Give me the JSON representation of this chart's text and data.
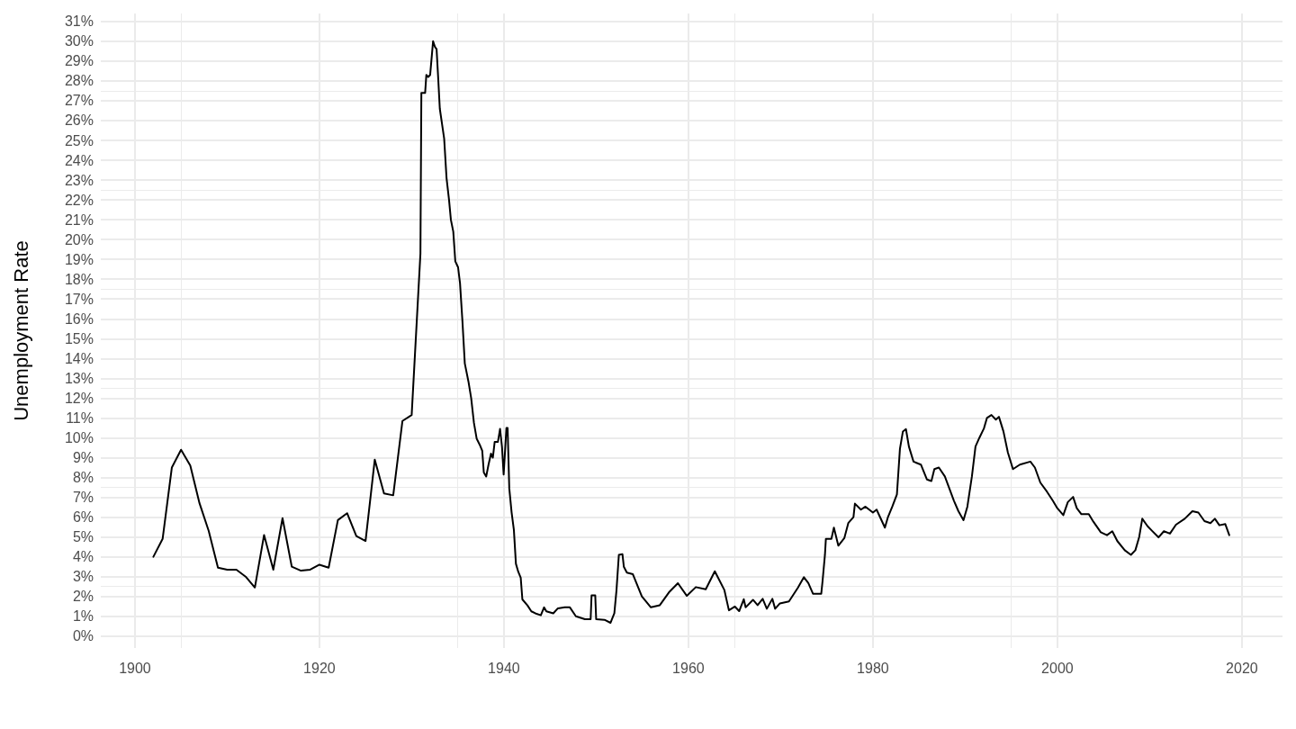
{
  "chart_data": {
    "type": "line",
    "ylabel": "Unemployment Rate",
    "xlim": [
      1896.3,
      2024.4
    ],
    "ylim": [
      -0.6,
      31.4
    ],
    "xticks": [
      1900,
      1920,
      1940,
      1960,
      1980,
      2000,
      2020
    ],
    "yticks": [
      {
        "value": 0,
        "label": "0%"
      },
      {
        "value": 1,
        "label": "1%"
      },
      {
        "value": 2,
        "label": "2%"
      },
      {
        "value": 3,
        "label": "3%"
      },
      {
        "value": 4,
        "label": "4%"
      },
      {
        "value": 5,
        "label": "5%"
      },
      {
        "value": 6,
        "label": "6%"
      },
      {
        "value": 7,
        "label": "7%"
      },
      {
        "value": 8,
        "label": "8%"
      },
      {
        "value": 9,
        "label": "9%"
      },
      {
        "value": 10,
        "label": "10%"
      },
      {
        "value": 11,
        "label": "11%"
      },
      {
        "value": 12,
        "label": "12%"
      },
      {
        "value": 13,
        "label": "13%"
      },
      {
        "value": 14,
        "label": "14%"
      },
      {
        "value": 15,
        "label": "15%"
      },
      {
        "value": 16,
        "label": "16%"
      },
      {
        "value": 17,
        "label": "17%"
      },
      {
        "value": 18,
        "label": "18%"
      },
      {
        "value": 19,
        "label": "19%"
      },
      {
        "value": 20,
        "label": "20%"
      },
      {
        "value": 21,
        "label": "21%"
      },
      {
        "value": 22,
        "label": "22%"
      },
      {
        "value": 23,
        "label": "23%"
      },
      {
        "value": 24,
        "label": "24%"
      },
      {
        "value": 25,
        "label": "25%"
      },
      {
        "value": 26,
        "label": "26%"
      },
      {
        "value": 27,
        "label": "27%"
      },
      {
        "value": 28,
        "label": "28%"
      },
      {
        "value": 29,
        "label": "29%"
      },
      {
        "value": 30,
        "label": "30%"
      },
      {
        "value": 31,
        "label": "31%"
      }
    ],
    "grid": true,
    "marker": "none",
    "line_style": "solid",
    "x": [
      1902,
      1903,
      1904,
      1905,
      1906,
      1907,
      1908,
      1909,
      1910,
      1911,
      1912,
      1913,
      1914,
      1915,
      1916,
      1917,
      1918,
      1919,
      1920,
      1921,
      1922,
      1923,
      1924,
      1925,
      1926,
      1927,
      1928,
      1929,
      1930,
      1930.95,
      1931.05,
      1931.46,
      1931.59,
      1931.8,
      1932.0,
      1932.32,
      1932.54,
      1932.7,
      1932.88,
      1933.05,
      1933.3,
      1933.52,
      1933.78,
      1934.05,
      1934.25,
      1934.51,
      1934.73,
      1935.03,
      1935.24,
      1935.5,
      1935.76,
      1936.15,
      1936.45,
      1936.75,
      1937.05,
      1937.38,
      1937.65,
      1937.82,
      1938.08,
      1938.33,
      1938.6,
      1938.8,
      1939.0,
      1939.35,
      1939.58,
      1939.79,
      1939.97,
      1940.15,
      1940.27,
      1940.4,
      1940.58,
      1940.83,
      1941.08,
      1941.3,
      1941.55,
      1941.82,
      1942.0,
      1942.55,
      1942.97,
      1943.4,
      1944.0,
      1944.35,
      1944.6,
      1945.35,
      1945.85,
      1946.6,
      1947.15,
      1947.8,
      1948.78,
      1949.4,
      1949.5,
      1949.9,
      1950.0,
      1950.9,
      1951.55,
      1951.97,
      1952.2,
      1952.46,
      1952.85,
      1953.0,
      1953.33,
      1953.98,
      1954.95,
      1955.93,
      1956.9,
      1957.88,
      1958.86,
      1959.83,
      1960.8,
      1961.88,
      1962.86,
      1963.9,
      1964.39,
      1965.04,
      1965.5,
      1966.0,
      1966.2,
      1967.0,
      1967.5,
      1968.05,
      1968.5,
      1969.1,
      1969.4,
      1969.92,
      1970.9,
      1971.87,
      1972.52,
      1973.0,
      1973.5,
      1974.4,
      1974.54,
      1974.8,
      1974.9,
      1975.5,
      1975.77,
      1976.25,
      1976.9,
      1977.33,
      1977.89,
      1978.05,
      1978.7,
      1979.19,
      1980.0,
      1980.4,
      1981.3,
      1981.63,
      1982.1,
      1982.6,
      1982.93,
      1983.25,
      1983.58,
      1983.9,
      1984.4,
      1985.2,
      1985.85,
      1986.34,
      1986.66,
      1987.15,
      1987.8,
      1988.29,
      1988.78,
      1989.27,
      1989.82,
      1990.24,
      1990.73,
      1991.12,
      1991.54,
      1992.03,
      1992.36,
      1992.85,
      1993.33,
      1993.66,
      1994.15,
      1994.63,
      1995.18,
      1995.93,
      1997.07,
      1997.56,
      1998.15,
      1998.86,
      1999.5,
      1999.99,
      2000.64,
      2001.13,
      2001.7,
      2002.1,
      2002.6,
      2003.4,
      2003.9,
      2004.7,
      2005.37,
      2005.95,
      2006.5,
      2007.3,
      2007.97,
      2008.45,
      2008.87,
      2009.2,
      2009.76,
      2010.24,
      2010.96,
      2011.54,
      2012.2,
      2012.85,
      2013.8,
      2014.63,
      2015.28,
      2015.94,
      2016.59,
      2017.07,
      2017.56,
      2018.2,
      2018.63
    ],
    "series": [
      {
        "color": "#000000",
        "values": [
          4.0,
          4.9,
          8.5,
          9.4,
          8.6,
          6.7,
          5.3,
          3.45,
          3.35,
          3.35,
          3.0,
          2.45,
          5.1,
          3.35,
          5.95,
          3.5,
          3.3,
          3.35,
          3.6,
          3.45,
          5.85,
          6.2,
          5.05,
          4.8,
          8.9,
          7.2,
          7.1,
          10.85,
          11.15,
          19.3,
          27.4,
          27.4,
          28.3,
          28.2,
          28.3,
          30.0,
          29.7,
          29.6,
          28.1,
          26.6,
          25.8,
          25.1,
          23.1,
          22.0,
          21.0,
          20.4,
          18.9,
          18.6,
          17.8,
          15.9,
          13.75,
          12.85,
          12.0,
          10.75,
          9.95,
          9.65,
          9.35,
          8.25,
          8.05,
          8.65,
          9.2,
          9.0,
          9.8,
          9.8,
          10.45,
          9.55,
          8.15,
          9.55,
          10.5,
          10.5,
          7.45,
          6.25,
          5.35,
          3.65,
          3.25,
          2.95,
          1.85,
          1.55,
          1.25,
          1.15,
          1.05,
          1.45,
          1.25,
          1.15,
          1.4,
          1.45,
          1.45,
          1.0,
          0.85,
          0.85,
          2.05,
          2.05,
          0.85,
          0.82,
          0.67,
          1.15,
          2.3,
          4.1,
          4.13,
          3.5,
          3.2,
          3.12,
          2.0,
          1.45,
          1.56,
          2.2,
          2.67,
          2.03,
          2.47,
          2.36,
          3.27,
          2.32,
          1.3,
          1.49,
          1.26,
          1.86,
          1.45,
          1.83,
          1.56,
          1.88,
          1.38,
          1.88,
          1.38,
          1.65,
          1.75,
          2.44,
          2.97,
          2.67,
          2.14,
          2.14,
          2.77,
          4.1,
          4.9,
          4.9,
          5.47,
          4.56,
          4.94,
          5.7,
          6.0,
          6.68,
          6.38,
          6.53,
          6.23,
          6.38,
          5.47,
          6.0,
          6.53,
          7.14,
          9.45,
          10.32,
          10.44,
          9.56,
          8.8,
          8.65,
          7.9,
          7.82,
          8.42,
          8.5,
          8.05,
          7.44,
          6.83,
          6.3,
          5.85,
          6.53,
          8.05,
          9.56,
          10.0,
          10.47,
          11.0,
          11.15,
          10.92,
          11.06,
          10.32,
          9.26,
          8.42,
          8.65,
          8.8,
          8.5,
          7.74,
          7.29,
          6.83,
          6.45,
          6.1,
          6.76,
          7.02,
          6.45,
          6.15,
          6.15,
          5.77,
          5.24,
          5.09,
          5.29,
          4.79,
          4.33,
          4.1,
          4.33,
          5.01,
          5.92,
          5.55,
          5.32,
          4.98,
          5.29,
          5.17,
          5.62,
          5.92,
          6.3,
          6.23,
          5.8,
          5.7,
          5.92,
          5.59,
          5.65,
          5.09
        ]
      }
    ]
  }
}
